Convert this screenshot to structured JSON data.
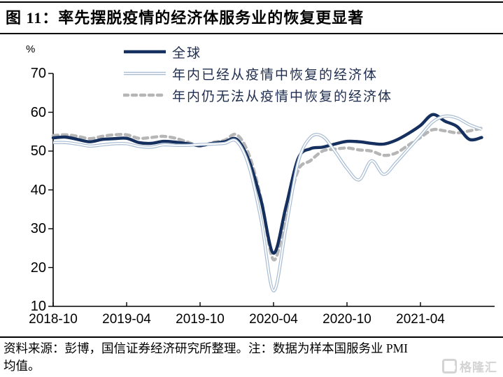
{
  "title": "图 11：率先摆脱疫情的经济体服务业的恢复更显著",
  "y_axis_unit": "%",
  "footer": {
    "line1": "资料来源：彭博，国信证券经济研究所整理。注：数据为样本国服务业 PMI",
    "line2": "均值。"
  },
  "watermark": {
    "label": "格隆汇",
    "icon": "gelonghui-logo"
  },
  "colors": {
    "global_line": "#15305e",
    "recovered_line": "#a8bcd2",
    "not_recovered_line": "#b6b6b6",
    "axis": "#000000",
    "watermark": "#d4d4d4"
  },
  "chart_data": {
    "type": "line",
    "title": "图 11：率先摆脱疫情的经济体服务业的恢复更显著",
    "ylabel": "%",
    "ylim": [
      10,
      70
    ],
    "grid": false,
    "legend_position": "top",
    "y_ticks": [
      70,
      60,
      50,
      40,
      30,
      20,
      10
    ],
    "x_ticks": [
      "2018-10",
      "2019-04",
      "2019-10",
      "2020-04",
      "2020-10",
      "2021-04"
    ],
    "x": [
      "2018-10",
      "2018-11",
      "2018-12",
      "2019-01",
      "2019-02",
      "2019-03",
      "2019-04",
      "2019-05",
      "2019-06",
      "2019-07",
      "2019-08",
      "2019-09",
      "2019-10",
      "2019-11",
      "2019-12",
      "2020-01",
      "2020-02",
      "2020-03",
      "2020-04",
      "2020-05",
      "2020-06",
      "2020-07",
      "2020-08",
      "2020-09",
      "2020-10",
      "2020-11",
      "2020-12",
      "2021-01",
      "2021-02",
      "2021-03",
      "2021-04",
      "2021-05",
      "2021-06",
      "2021-07",
      "2021-08",
      "2021-09"
    ],
    "series": [
      {
        "name": "全球",
        "style": "solid-thick",
        "color": "#15305e",
        "values": [
          53.4,
          53.6,
          53.0,
          52.4,
          53.0,
          53.2,
          53.3,
          52.2,
          52.0,
          52.5,
          52.3,
          51.9,
          51.4,
          52.0,
          52.4,
          53.0,
          47.5,
          37.0,
          23.7,
          35.5,
          48.0,
          50.6,
          51.0,
          51.8,
          52.5,
          52.4,
          52.0,
          51.8,
          52.8,
          54.5,
          56.6,
          59.4,
          57.7,
          56.3,
          53.0,
          53.5
        ]
      },
      {
        "name": "年内已经从疫情中恢复的经济体",
        "style": "double-thin",
        "color": "#a8bcd2",
        "values": [
          52.2,
          52.2,
          51.8,
          51.3,
          51.6,
          51.9,
          51.9,
          51.2,
          51.0,
          51.6,
          51.5,
          51.5,
          51.7,
          51.8,
          52.0,
          52.5,
          46.0,
          32.0,
          14.0,
          30.0,
          47.0,
          53.5,
          53.8,
          50.0,
          45.5,
          42.6,
          47.5,
          44.0,
          47.0,
          50.5,
          54.0,
          57.5,
          59.0,
          58.5,
          56.8,
          55.6
        ]
      },
      {
        "name": "年内仍无法从疫情中恢复的经济体",
        "style": "dashed",
        "color": "#b6b6b6",
        "values": [
          54.0,
          54.2,
          53.8,
          53.2,
          53.8,
          54.2,
          54.2,
          53.3,
          53.5,
          53.8,
          53.3,
          52.3,
          51.3,
          52.2,
          52.8,
          54.2,
          49.0,
          37.5,
          22.0,
          33.0,
          45.0,
          47.5,
          50.0,
          50.5,
          50.8,
          50.3,
          50.0,
          48.9,
          49.5,
          51.5,
          53.5,
          55.5,
          55.2,
          54.7,
          55.2,
          55.9
        ]
      }
    ]
  }
}
